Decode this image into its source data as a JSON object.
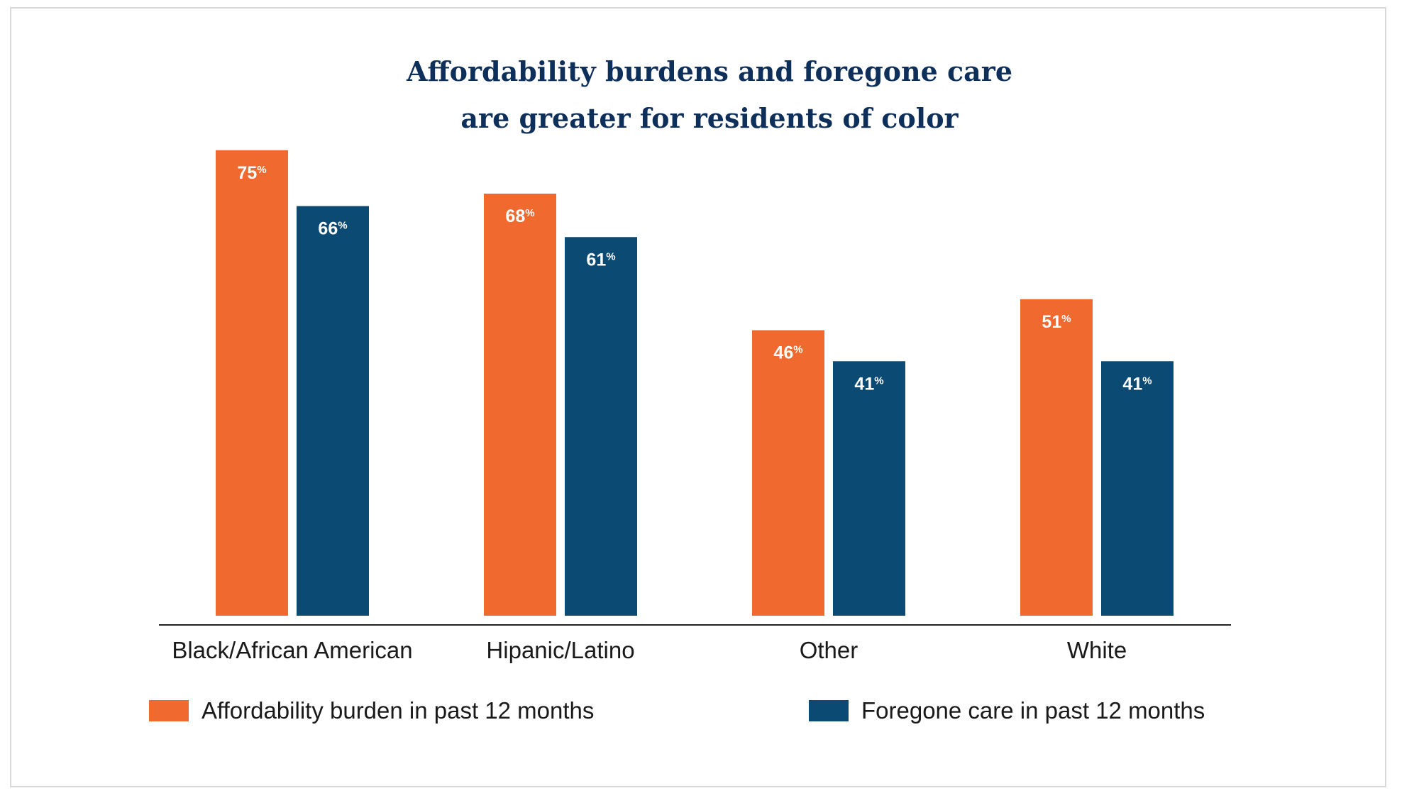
{
  "colors": {
    "affordability": "#f0692f",
    "foregone": "#0b4a72",
    "title": "#0e2f5a"
  },
  "chart_data": {
    "type": "bar",
    "title_lines": [
      "Affordability burdens and foregone care",
      "are greater for residents of color"
    ],
    "categories": [
      "Black/African American",
      "Hipanic/Latino",
      "Other",
      "White"
    ],
    "series": [
      {
        "name": "Affordability burden in past 12 months",
        "values": [
          75,
          68,
          46,
          51
        ],
        "labels": [
          "75",
          "68",
          "46",
          "51"
        ],
        "color": "#f0692f"
      },
      {
        "name": "Foregone care in past 12 months",
        "values": [
          66,
          61,
          41,
          41
        ],
        "labels": [
          "66",
          "61",
          "41",
          "41"
        ],
        "color": "#0b4a72"
      }
    ],
    "value_suffix": "%",
    "ylim": [
      0,
      100
    ],
    "xlabel": "",
    "ylabel": "",
    "grid": false,
    "legend_position": "bottom"
  }
}
